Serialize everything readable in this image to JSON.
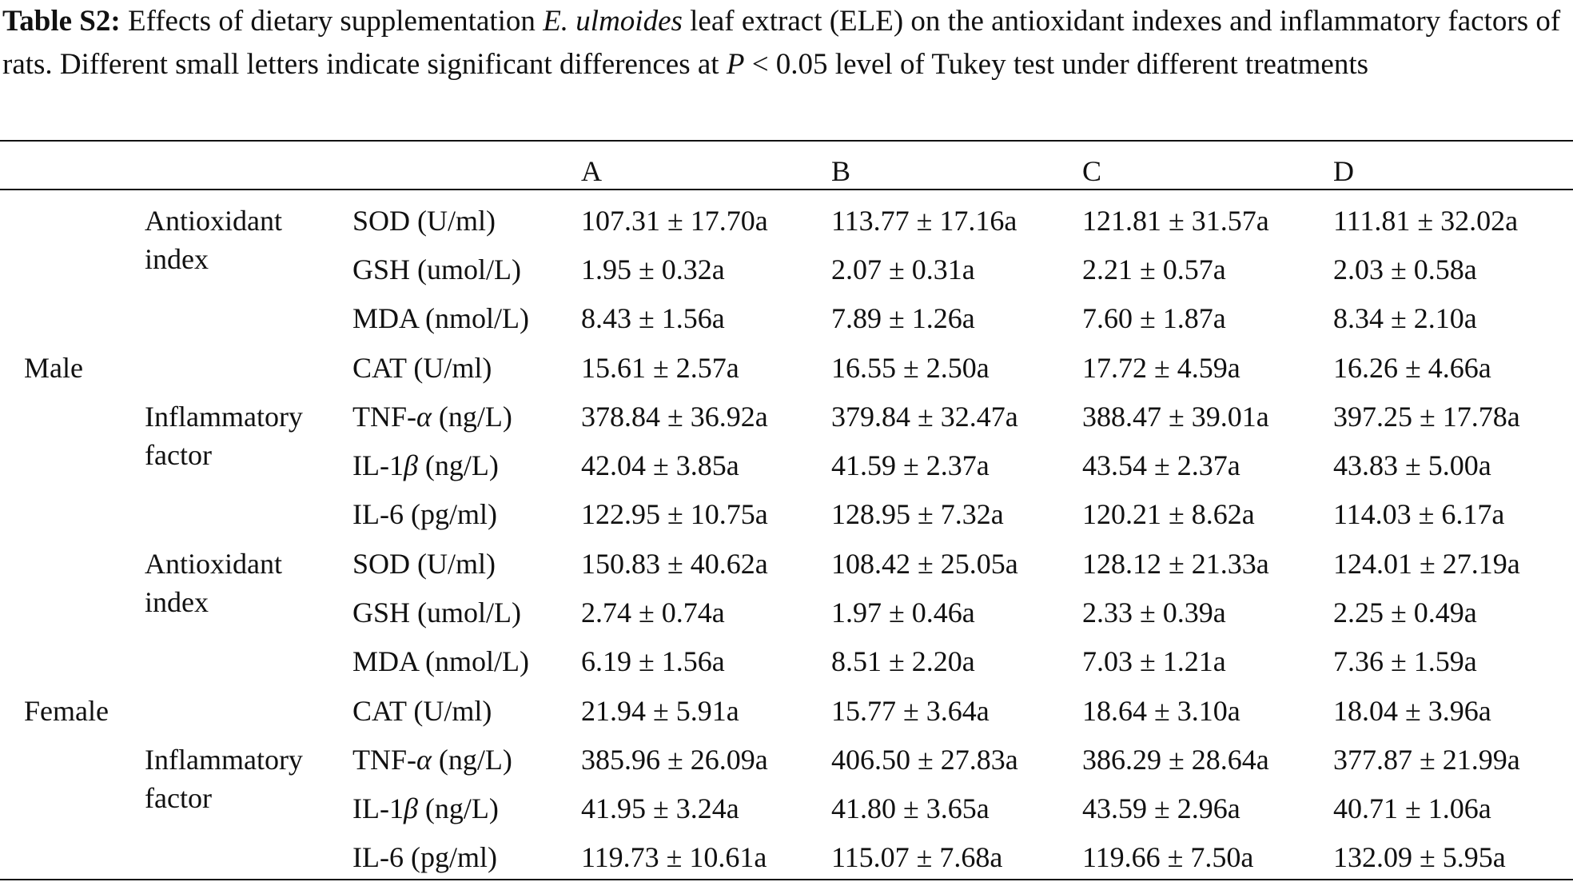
{
  "caption": {
    "label": "Table S2:",
    "text_1": " Effects of dietary supplementation ",
    "species": "E. ulmoides",
    "text_2": " leaf extract (ELE) on the antioxidant indexes and inflammatory factors of rats. Different small letters indicate significant differences at ",
    "p_symbol": "P",
    "text_3": " < 0.05 level of Tukey test under different treatments"
  },
  "table": {
    "columns": [
      "A",
      "B",
      "C",
      "D"
    ],
    "sexes": [
      "Male",
      "Female"
    ],
    "groups": [
      {
        "line1": "Antioxidant",
        "line2": "index"
      },
      {
        "line1": "Inflammatory",
        "line2": "factor"
      },
      {
        "line1": "Antioxidant",
        "line2": "index"
      },
      {
        "line1": "Inflammatory",
        "line2": "factor"
      }
    ],
    "rows": [
      {
        "pre": "SOD (U/ml)",
        "greek": "",
        "post": "",
        "values": [
          "107.31 ± 17.70a",
          "113.77 ± 17.16a",
          "121.81 ± 31.57a",
          "111.81 ± 32.02a"
        ]
      },
      {
        "pre": "GSH (umol/L)",
        "greek": "",
        "post": "",
        "values": [
          "1.95 ± 0.32a",
          "2.07 ± 0.31a",
          "2.21 ± 0.57a",
          "2.03 ± 0.58a"
        ]
      },
      {
        "pre": "MDA (nmol/L)",
        "greek": "",
        "post": "",
        "values": [
          "8.43 ± 1.56a",
          "7.89 ± 1.26a",
          "7.60 ± 1.87a",
          "8.34 ± 2.10a"
        ]
      },
      {
        "pre": "CAT (U/ml)",
        "greek": "",
        "post": "",
        "values": [
          "15.61 ± 2.57a",
          "16.55 ± 2.50a",
          "17.72 ± 4.59a",
          "16.26 ± 4.66a"
        ]
      },
      {
        "pre": "TNF-",
        "greek": "α",
        "post": " (ng/L)",
        "values": [
          "378.84 ± 36.92a",
          "379.84 ± 32.47a",
          "388.47 ± 39.01a",
          "397.25 ± 17.78a"
        ]
      },
      {
        "pre": "IL-1",
        "greek": "β",
        "post": " (ng/L)",
        "values": [
          "42.04 ± 3.85a",
          "41.59 ± 2.37a",
          "43.54 ± 2.37a",
          "43.83 ± 5.00a"
        ]
      },
      {
        "pre": "IL-6 (pg/ml)",
        "greek": "",
        "post": "",
        "values": [
          "122.95 ± 10.75a",
          "128.95 ± 7.32a",
          "120.21 ± 8.62a",
          "114.03 ± 6.17a"
        ]
      },
      {
        "pre": "SOD (U/ml)",
        "greek": "",
        "post": "",
        "values": [
          "150.83 ± 40.62a",
          "108.42 ± 25.05a",
          "128.12 ± 21.33a",
          "124.01 ± 27.19a"
        ]
      },
      {
        "pre": "GSH (umol/L)",
        "greek": "",
        "post": "",
        "values": [
          "2.74 ± 0.74a",
          "1.97 ± 0.46a",
          "2.33 ± 0.39a",
          "2.25 ± 0.49a"
        ]
      },
      {
        "pre": "MDA (nmol/L)",
        "greek": "",
        "post": "",
        "values": [
          "6.19 ± 1.56a",
          "8.51 ± 2.20a",
          "7.03 ± 1.21a",
          "7.36 ± 1.59a"
        ]
      },
      {
        "pre": "CAT (U/ml)",
        "greek": "",
        "post": "",
        "values": [
          "21.94 ± 5.91a",
          "15.77 ± 3.64a",
          "18.64 ± 3.10a",
          "18.04 ± 3.96a"
        ]
      },
      {
        "pre": "TNF-",
        "greek": "α",
        "post": " (ng/L)",
        "values": [
          "385.96 ± 26.09a",
          "406.50 ± 27.83a",
          "386.29 ± 28.64a",
          "377.87 ± 21.99a"
        ]
      },
      {
        "pre": "IL-1",
        "greek": "β",
        "post": " (ng/L)",
        "values": [
          "41.95 ± 3.24a",
          "41.80 ± 3.65a",
          "43.59 ± 2.96a",
          "40.71 ± 1.06a"
        ]
      },
      {
        "pre": "IL-6 (pg/ml)",
        "greek": "",
        "post": "",
        "values": [
          "119.73 ± 10.61a",
          "115.07 ± 7.68a",
          "119.66 ± 7.50a",
          "132.09 ± 5.95a"
        ]
      }
    ]
  }
}
